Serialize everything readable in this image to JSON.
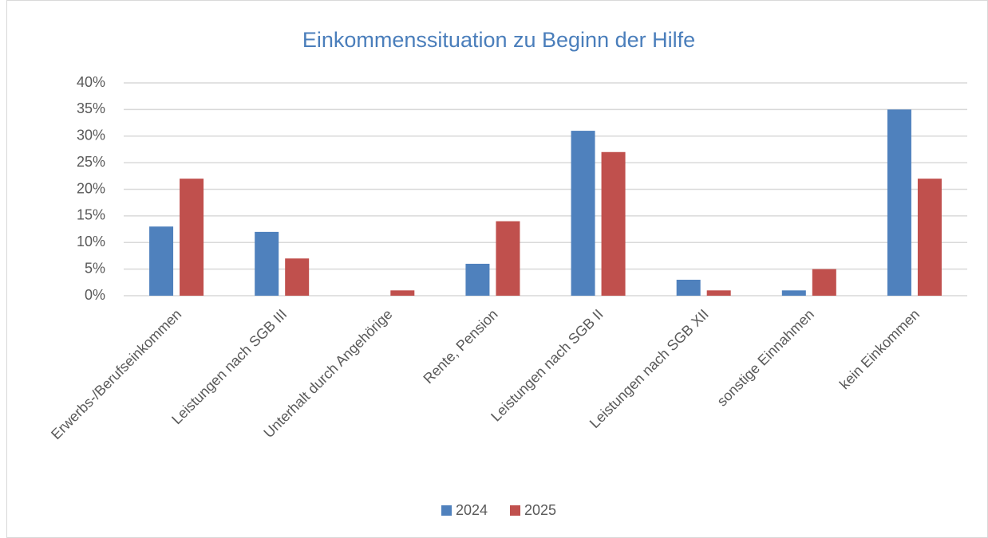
{
  "chart_data": {
    "type": "bar",
    "title": "Einkommenssituation zu Beginn der Hilfe",
    "categories": [
      "Erwerbs-/Berufseinkommen",
      "Leistungen nach SGB III",
      "Unterhalt durch Angehörige",
      "Rente, Pension",
      "Leistungen nach SGB II",
      "Leistungen nach SGB XII",
      "sonstige Einnahmen",
      "kein Einkommen"
    ],
    "series": [
      {
        "name": "2024",
        "color": "#4f81bd",
        "values": [
          13,
          12,
          0,
          6,
          31,
          3,
          1,
          35
        ]
      },
      {
        "name": "2025",
        "color": "#c0504d",
        "values": [
          22,
          7,
          1,
          14,
          27,
          1,
          5,
          22
        ]
      }
    ],
    "ylim": [
      0,
      40
    ],
    "yticks": [
      {
        "value": 0,
        "label": "0%"
      },
      {
        "value": 5,
        "label": "5%"
      },
      {
        "value": 10,
        "label": "10%"
      },
      {
        "value": 15,
        "label": "15%"
      },
      {
        "value": 20,
        "label": "20%"
      },
      {
        "value": 25,
        "label": "25%"
      },
      {
        "value": 30,
        "label": "30%"
      },
      {
        "value": 35,
        "label": "35%"
      },
      {
        "value": 40,
        "label": "40%"
      }
    ],
    "grid": true,
    "legend": "bottom"
  }
}
